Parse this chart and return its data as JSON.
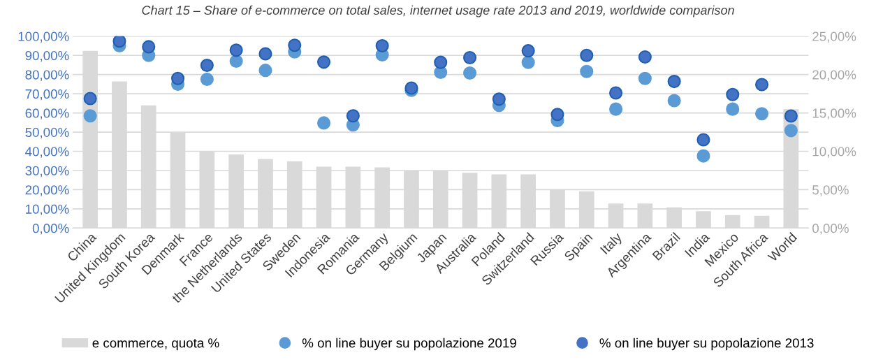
{
  "chart_data": {
    "type": "bar",
    "title": "Chart 15 – Share of e-commerce on total sales, internet usage rate 2013 and 2019, worldwide comparison",
    "categories": [
      "China",
      "United Kingdom",
      "South Korea",
      "Denmark",
      "France",
      "the Netherlands",
      "United States",
      "Sweden",
      "Indonesia",
      "Romania",
      "Germany",
      "Belgium",
      "Japan",
      "Australia",
      "Poland",
      "Switzerland",
      "Russia",
      "Spain",
      "Italy",
      "Argentina",
      "Brazil",
      "India",
      "Mexico",
      "South Africa",
      "World"
    ],
    "series": [
      {
        "name": "e commerce, quota %",
        "axis": "y2",
        "color": "#d9d9d9",
        "values": [
          23.1,
          19.1,
          16.0,
          12.5,
          10.0,
          9.6,
          9.0,
          8.7,
          8.0,
          8.0,
          7.9,
          7.5,
          7.5,
          7.2,
          7.0,
          7.0,
          5.0,
          4.8,
          3.2,
          3.2,
          2.7,
          2.2,
          1.7,
          1.6,
          15.5
        ]
      },
      {
        "name": "% on line buyer su popolazione 2019",
        "type": "scatter",
        "color": "#5b9bd5",
        "values": [
          58.5,
          95,
          90,
          75,
          77.5,
          87,
          82.2,
          91.8,
          54.8,
          53.8,
          90.3,
          71.8,
          81.2,
          80.8,
          64,
          86.4,
          56,
          81.6,
          62,
          78,
          66.4,
          37.6,
          62,
          59.6,
          50.8
        ]
      },
      {
        "name": "% on line buyer su popolazione 2013",
        "type": "scatter",
        "color": "#4472c4",
        "values": [
          67.5,
          97.5,
          94.5,
          78,
          84.8,
          92.7,
          90.8,
          95.3,
          86.5,
          58.5,
          95,
          73,
          86.4,
          88.8,
          67.2,
          92.4,
          59.2,
          90,
          70.4,
          89.2,
          76.4,
          46,
          69.6,
          74.8,
          58.4
        ]
      }
    ],
    "ylim": [
      0,
      100
    ],
    "yticks": [
      {
        "value": 0,
        "label": "0,00%"
      },
      {
        "value": 10,
        "label": "10,00%"
      },
      {
        "value": 20,
        "label": "20,00%"
      },
      {
        "value": 30,
        "label": "30,00%"
      },
      {
        "value": 40,
        "label": "40,00%"
      },
      {
        "value": 50,
        "label": "50,00%"
      },
      {
        "value": 60,
        "label": "60,00%"
      },
      {
        "value": 70,
        "label": "70,00%"
      },
      {
        "value": 80,
        "label": "80,00%"
      },
      {
        "value": 90,
        "label": "90,00%"
      },
      {
        "value": 100,
        "label": "100,00%"
      }
    ],
    "y2lim": [
      0,
      25
    ],
    "y2ticks": [
      {
        "value": 0,
        "label": "0,00%"
      },
      {
        "value": 5,
        "label": "5,00%"
      },
      {
        "value": 10,
        "label": "10,00%"
      },
      {
        "value": 15,
        "label": "15,00%"
      },
      {
        "value": 20,
        "label": "20,00%"
      },
      {
        "value": 25,
        "label": "25,00%"
      }
    ],
    "grid": "y",
    "legend": "bottom",
    "marker": "circle"
  }
}
